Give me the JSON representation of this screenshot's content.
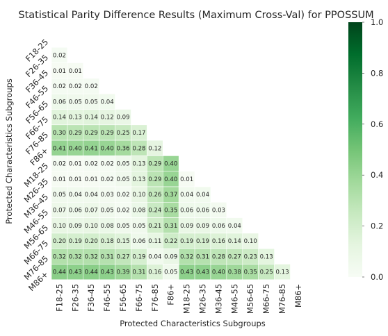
{
  "chart_data": {
    "type": "heatmap",
    "title": "Statistical Parity Difference Results (Maximum Cross-Val) for PPOSSUM",
    "xlabel": "Protected Characteristics Subgroups",
    "ylabel": "Protected Characteristics Subgroups",
    "categories": [
      "F18-25",
      "F26-35",
      "F36-45",
      "F46-55",
      "F56-65",
      "F66-75",
      "F76-85",
      "F86+",
      "M18-25",
      "M26-35",
      "M36-45",
      "M46-55",
      "M56-65",
      "M66-75",
      "M76-85",
      "M86+"
    ],
    "mask": "upper-triangle-including-diagonal",
    "values": [
      [],
      [
        0.02
      ],
      [
        0.01,
        0.01
      ],
      [
        0.02,
        0.02,
        0.02
      ],
      [
        0.06,
        0.05,
        0.05,
        0.04
      ],
      [
        0.14,
        0.13,
        0.14,
        0.12,
        0.09
      ],
      [
        0.3,
        0.29,
        0.29,
        0.29,
        0.25,
        0.17
      ],
      [
        0.41,
        0.4,
        0.41,
        0.4,
        0.36,
        0.28,
        0.12
      ],
      [
        0.02,
        0.01,
        0.02,
        0.02,
        0.05,
        0.13,
        0.29,
        0.4
      ],
      [
        0.01,
        0.01,
        0.01,
        0.02,
        0.05,
        0.13,
        0.29,
        0.4,
        0.01
      ],
      [
        0.05,
        0.04,
        0.04,
        0.03,
        0.02,
        0.1,
        0.26,
        0.37,
        0.04,
        0.04
      ],
      [
        0.07,
        0.06,
        0.07,
        0.05,
        0.02,
        0.08,
        0.24,
        0.35,
        0.06,
        0.06,
        0.03
      ],
      [
        0.1,
        0.09,
        0.1,
        0.08,
        0.05,
        0.05,
        0.21,
        0.31,
        0.09,
        0.09,
        0.06,
        0.04
      ],
      [
        0.2,
        0.19,
        0.2,
        0.18,
        0.15,
        0.06,
        0.11,
        0.22,
        0.19,
        0.19,
        0.16,
        0.14,
        0.1
      ],
      [
        0.32,
        0.32,
        0.32,
        0.31,
        0.27,
        0.19,
        0.04,
        0.09,
        0.32,
        0.31,
        0.28,
        0.27,
        0.23,
        0.13
      ],
      [
        0.44,
        0.43,
        0.44,
        0.43,
        0.39,
        0.31,
        0.16,
        0.05,
        0.43,
        0.43,
        0.4,
        0.38,
        0.35,
        0.25,
        0.13
      ]
    ],
    "colorbar": {
      "colormap": "Greens",
      "range": [
        0,
        1
      ],
      "ticks": [
        "0.0",
        "0.2",
        "0.4",
        "0.6",
        "0.8",
        "1.0"
      ]
    },
    "value_format": "2 decimals",
    "colors": {
      "min": "#f7fcf5",
      "max": "#00441b",
      "text_light": "#ffffff",
      "text_dark": "#262626"
    }
  }
}
